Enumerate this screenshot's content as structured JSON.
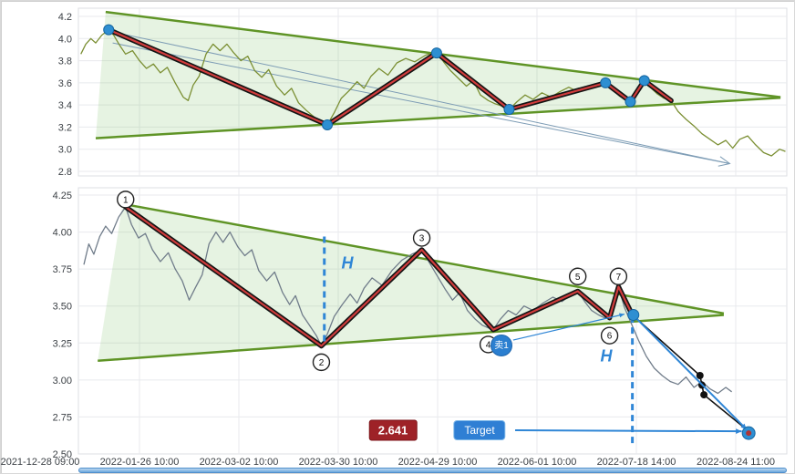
{
  "figure": {
    "x_tick_labels": [
      "2021-12-28 09:00",
      "2022-01-26 10:00",
      "2022-03-02 10:00",
      "2022-03-30 10:00",
      "2022-04-29 10:00",
      "2022-06-01 10:00",
      "2022-07-18 14:00",
      "2022-08-24 11:00"
    ],
    "colors": {
      "panel_border": "#dcdfe3",
      "grid": "#e8eaed",
      "axis_text": "#3a3f44",
      "wedge_line": "#5f9426",
      "wedge_fill": "rgba(130,195,110,0.20)",
      "price_top": "#7b8f33",
      "price_bottom": "#707c8a",
      "zigzag_outer": "#141414",
      "zigzag_inner": "#d03c3c",
      "pivot_dot": "#2e8fd2",
      "pivot_dot_edge": "#1565a0",
      "dashed_blue": "#2f86d6",
      "annotation_blue": "#2f86d6",
      "projection_arrow": "#7d9cb5",
      "black_line": "#111111",
      "target_inner": "#b03535"
    }
  },
  "chart_data": [
    {
      "type": "line",
      "name": "upper-panel",
      "y_ticks": [
        4.2,
        4.0,
        3.8,
        3.6,
        3.4,
        3.2,
        3.0,
        2.8
      ],
      "y_tick_labels": [
        "4.2",
        "4.0",
        "3.8",
        "3.6",
        "3.4",
        "3.2",
        "3.0",
        "2.8"
      ],
      "price": [
        [
          0.41,
          3.86
        ],
        [
          0.46,
          3.95
        ],
        [
          0.51,
          4.0
        ],
        [
          0.56,
          3.96
        ],
        [
          0.62,
          4.03
        ],
        [
          0.69,
          4.08
        ],
        [
          0.74,
          4.03
        ],
        [
          0.8,
          3.94
        ],
        [
          0.86,
          3.86
        ],
        [
          0.93,
          3.89
        ],
        [
          1.0,
          3.8
        ],
        [
          1.07,
          3.73
        ],
        [
          1.14,
          3.77
        ],
        [
          1.21,
          3.69
        ],
        [
          1.28,
          3.74
        ],
        [
          1.36,
          3.6
        ],
        [
          1.44,
          3.47
        ],
        [
          1.49,
          3.44
        ],
        [
          1.54,
          3.58
        ],
        [
          1.6,
          3.66
        ],
        [
          1.67,
          3.86
        ],
        [
          1.74,
          3.95
        ],
        [
          1.81,
          3.89
        ],
        [
          1.88,
          3.95
        ],
        [
          1.95,
          3.87
        ],
        [
          2.02,
          3.8
        ],
        [
          2.09,
          3.84
        ],
        [
          2.16,
          3.71
        ],
        [
          2.23,
          3.65
        ],
        [
          2.3,
          3.72
        ],
        [
          2.38,
          3.57
        ],
        [
          2.46,
          3.49
        ],
        [
          2.53,
          3.55
        ],
        [
          2.6,
          3.42
        ],
        [
          2.68,
          3.35
        ],
        [
          2.76,
          3.29
        ],
        [
          2.83,
          3.25
        ],
        [
          2.89,
          3.22
        ],
        [
          2.96,
          3.33
        ],
        [
          3.03,
          3.46
        ],
        [
          3.11,
          3.53
        ],
        [
          3.19,
          3.61
        ],
        [
          3.26,
          3.55
        ],
        [
          3.33,
          3.66
        ],
        [
          3.41,
          3.73
        ],
        [
          3.5,
          3.67
        ],
        [
          3.59,
          3.78
        ],
        [
          3.68,
          3.82
        ],
        [
          3.77,
          3.79
        ],
        [
          3.88,
          3.85
        ],
        [
          3.99,
          3.88
        ],
        [
          4.06,
          3.79
        ],
        [
          4.13,
          3.71
        ],
        [
          4.21,
          3.64
        ],
        [
          4.29,
          3.57
        ],
        [
          4.36,
          3.62
        ],
        [
          4.43,
          3.49
        ],
        [
          4.51,
          3.44
        ],
        [
          4.58,
          3.41
        ],
        [
          4.65,
          3.39
        ],
        [
          4.72,
          3.36
        ],
        [
          4.8,
          3.43
        ],
        [
          4.88,
          3.49
        ],
        [
          4.96,
          3.45
        ],
        [
          5.05,
          3.51
        ],
        [
          5.14,
          3.47
        ],
        [
          5.23,
          3.52
        ],
        [
          5.32,
          3.56
        ],
        [
          5.41,
          3.52
        ],
        [
          5.51,
          3.57
        ],
        [
          5.6,
          3.59
        ],
        [
          5.69,
          3.6
        ],
        [
          5.76,
          3.54
        ],
        [
          5.83,
          3.48
        ],
        [
          5.89,
          3.45
        ],
        [
          5.94,
          3.43
        ],
        [
          6.0,
          3.51
        ],
        [
          6.05,
          3.58
        ],
        [
          6.08,
          3.62
        ],
        [
          6.14,
          3.56
        ],
        [
          6.21,
          3.5
        ],
        [
          6.28,
          3.46
        ],
        [
          6.35,
          3.44
        ],
        [
          6.42,
          3.34
        ],
        [
          6.5,
          3.27
        ],
        [
          6.58,
          3.21
        ],
        [
          6.66,
          3.14
        ],
        [
          6.74,
          3.09
        ],
        [
          6.82,
          3.04
        ],
        [
          6.9,
          3.08
        ],
        [
          6.97,
          3.01
        ],
        [
          7.04,
          3.09
        ],
        [
          7.12,
          3.12
        ],
        [
          7.2,
          3.04
        ],
        [
          7.28,
          2.97
        ],
        [
          7.36,
          2.94
        ],
        [
          7.44,
          3.0
        ],
        [
          7.5,
          2.98
        ]
      ],
      "zigzag": [
        [
          0.69,
          4.08
        ],
        [
          2.89,
          3.22
        ],
        [
          3.99,
          3.87
        ],
        [
          4.72,
          3.36
        ],
        [
          5.69,
          3.6
        ],
        [
          5.94,
          3.43
        ],
        [
          6.08,
          3.62
        ],
        [
          6.35,
          3.44
        ]
      ],
      "pivot_dots": [
        [
          0.69,
          4.08
        ],
        [
          2.89,
          3.22
        ],
        [
          3.99,
          3.87
        ],
        [
          4.72,
          3.36
        ],
        [
          5.69,
          3.6
        ],
        [
          5.94,
          3.43
        ],
        [
          6.08,
          3.62
        ]
      ],
      "wedge": {
        "upper": [
          [
            0.66,
            4.24
          ],
          [
            7.45,
            3.47
          ]
        ],
        "lower": [
          [
            0.56,
            3.1
          ],
          [
            7.45,
            3.465
          ]
        ]
      },
      "projection_arrow": {
        "from": [
          0.73,
          4.06
        ],
        "from2": [
          0.73,
          3.96
        ],
        "to": [
          6.94,
          2.87
        ]
      }
    },
    {
      "type": "line",
      "name": "lower-panel",
      "y_ticks": [
        4.25,
        4.0,
        3.75,
        3.5,
        3.25,
        3.0,
        2.75,
        2.5
      ],
      "y_tick_labels": [
        "4.25",
        "4.00",
        "3.75",
        "3.50",
        "3.25",
        "3.00",
        "2.75",
        "2.50"
      ],
      "price": [
        [
          0.44,
          3.78
        ],
        [
          0.49,
          3.92
        ],
        [
          0.54,
          3.85
        ],
        [
          0.6,
          3.97
        ],
        [
          0.66,
          4.04
        ],
        [
          0.72,
          3.99
        ],
        [
          0.79,
          4.1
        ],
        [
          0.86,
          4.17
        ],
        [
          0.92,
          4.05
        ],
        [
          0.99,
          3.96
        ],
        [
          1.06,
          3.99
        ],
        [
          1.13,
          3.88
        ],
        [
          1.21,
          3.8
        ],
        [
          1.29,
          3.86
        ],
        [
          1.36,
          3.75
        ],
        [
          1.43,
          3.67
        ],
        [
          1.5,
          3.54
        ],
        [
          1.56,
          3.62
        ],
        [
          1.63,
          3.71
        ],
        [
          1.7,
          3.92
        ],
        [
          1.77,
          4.0
        ],
        [
          1.84,
          3.93
        ],
        [
          1.91,
          4.0
        ],
        [
          1.99,
          3.9
        ],
        [
          2.06,
          3.84
        ],
        [
          2.13,
          3.88
        ],
        [
          2.2,
          3.74
        ],
        [
          2.28,
          3.67
        ],
        [
          2.36,
          3.73
        ],
        [
          2.44,
          3.59
        ],
        [
          2.51,
          3.51
        ],
        [
          2.57,
          3.57
        ],
        [
          2.64,
          3.44
        ],
        [
          2.71,
          3.37
        ],
        [
          2.78,
          3.3
        ],
        [
          2.83,
          3.23
        ],
        [
          2.89,
          3.31
        ],
        [
          2.96,
          3.43
        ],
        [
          3.04,
          3.51
        ],
        [
          3.12,
          3.58
        ],
        [
          3.19,
          3.52
        ],
        [
          3.26,
          3.62
        ],
        [
          3.34,
          3.69
        ],
        [
          3.44,
          3.64
        ],
        [
          3.54,
          3.74
        ],
        [
          3.64,
          3.81
        ],
        [
          3.74,
          3.85
        ],
        [
          3.84,
          3.88
        ],
        [
          3.92,
          3.79
        ],
        [
          4.0,
          3.7
        ],
        [
          4.08,
          3.61
        ],
        [
          4.15,
          3.54
        ],
        [
          4.22,
          3.59
        ],
        [
          4.3,
          3.47
        ],
        [
          4.38,
          3.41
        ],
        [
          4.45,
          3.37
        ],
        [
          4.52,
          3.35
        ],
        [
          4.56,
          3.34
        ],
        [
          4.63,
          3.41
        ],
        [
          4.71,
          3.47
        ],
        [
          4.79,
          3.44
        ],
        [
          4.87,
          3.5
        ],
        [
          4.96,
          3.47
        ],
        [
          5.06,
          3.52
        ],
        [
          5.16,
          3.56
        ],
        [
          5.25,
          3.53
        ],
        [
          5.33,
          3.57
        ],
        [
          5.41,
          3.6
        ],
        [
          5.48,
          3.53
        ],
        [
          5.55,
          3.47
        ],
        [
          5.62,
          3.44
        ],
        [
          5.68,
          3.42
        ],
        [
          5.73,
          3.42
        ],
        [
          5.78,
          3.53
        ],
        [
          5.82,
          3.63
        ],
        [
          5.88,
          3.49
        ],
        [
          5.95,
          3.38
        ],
        [
          6.02,
          3.27
        ],
        [
          6.1,
          3.16
        ],
        [
          6.18,
          3.08
        ],
        [
          6.26,
          3.03
        ],
        [
          6.34,
          2.99
        ],
        [
          6.42,
          2.97
        ],
        [
          6.5,
          3.02
        ],
        [
          6.58,
          2.95
        ],
        [
          6.66,
          2.99
        ],
        [
          6.74,
          2.94
        ],
        [
          6.82,
          2.91
        ],
        [
          6.9,
          2.95
        ],
        [
          6.96,
          2.92
        ]
      ],
      "zigzag": [
        [
          0.86,
          4.17
        ],
        [
          2.83,
          3.23
        ],
        [
          3.84,
          3.88
        ],
        [
          4.56,
          3.34
        ],
        [
          5.41,
          3.6
        ],
        [
          5.73,
          3.42
        ],
        [
          5.82,
          3.63
        ],
        [
          5.96,
          3.44
        ]
      ],
      "wedge": {
        "upper": [
          [
            0.83,
            4.19
          ],
          [
            6.88,
            3.45
          ]
        ],
        "lower": [
          [
            0.58,
            3.13
          ],
          [
            6.88,
            3.44
          ]
        ]
      },
      "pivot_labels": [
        {
          "label": "1",
          "pos": [
            0.86,
            4.22
          ]
        },
        {
          "label": "2",
          "pos": [
            2.83,
            3.12
          ]
        },
        {
          "label": "3",
          "pos": [
            3.84,
            3.96
          ]
        },
        {
          "label": "4",
          "pos": [
            4.51,
            3.24
          ]
        },
        {
          "label": "5",
          "pos": [
            5.41,
            3.7
          ]
        },
        {
          "label": "6",
          "pos": [
            5.73,
            3.3
          ]
        },
        {
          "label": "7",
          "pos": [
            5.82,
            3.7
          ]
        }
      ],
      "sell_badge": {
        "label": "卖1",
        "pos": [
          4.64,
          3.24
        ]
      },
      "h_lines": [
        {
          "x": 2.86,
          "y1": 3.97,
          "y2": 3.23,
          "label": "H",
          "label_pos": [
            3.08,
            3.78
          ]
        },
        {
          "x": 5.96,
          "y1": 3.43,
          "y2": 2.57,
          "label": "H",
          "label_pos": [
            5.66,
            3.14
          ]
        }
      ],
      "measure_box": {
        "label": "2.641",
        "pos": [
          3.55,
          2.66
        ]
      },
      "target_button": {
        "label": "Target",
        "pos": [
          4.42,
          2.66
        ]
      },
      "target_arrow": {
        "from": [
          4.78,
          2.66
        ],
        "to": [
          7.06,
          2.653
        ]
      },
      "sell_arrow": {
        "from": [
          4.76,
          3.27
        ],
        "to": [
          5.88,
          3.445
        ]
      },
      "decline_blue": {
        "from": [
          5.98,
          3.43
        ],
        "to": [
          7.11,
          2.665
        ]
      },
      "decline_black": [
        [
          5.96,
          3.44
        ],
        [
          6.64,
          3.03
        ],
        [
          6.68,
          2.9
        ],
        [
          7.1,
          2.67
        ]
      ],
      "black_dots": [
        [
          6.64,
          3.03
        ],
        [
          6.66,
          2.965
        ],
        [
          6.68,
          2.9
        ]
      ],
      "sell_dot": [
        5.97,
        3.44
      ],
      "target_point": {
        "pos": [
          7.13,
          2.641
        ],
        "value": "2.641"
      }
    }
  ]
}
